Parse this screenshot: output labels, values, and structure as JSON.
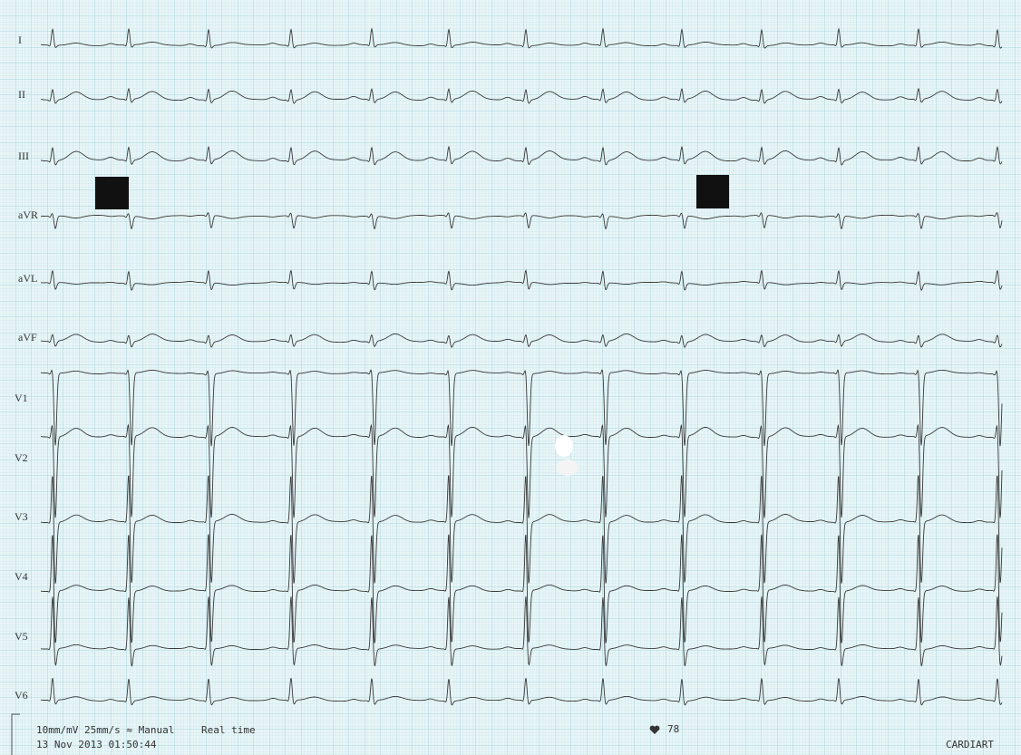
{
  "leads": [
    "I",
    "II",
    "III",
    "aVR",
    "aVL",
    "aVF",
    "V1",
    "V2",
    "V3",
    "V4",
    "V5",
    "V6"
  ],
  "footer": {
    "settings": "10mm/mV 25mm/s ≈ Manual",
    "mode": "Real time",
    "timestamp": "13 Nov 2013 01:50:44",
    "heart_rate": 78,
    "brand": "CARDIART"
  }
}
